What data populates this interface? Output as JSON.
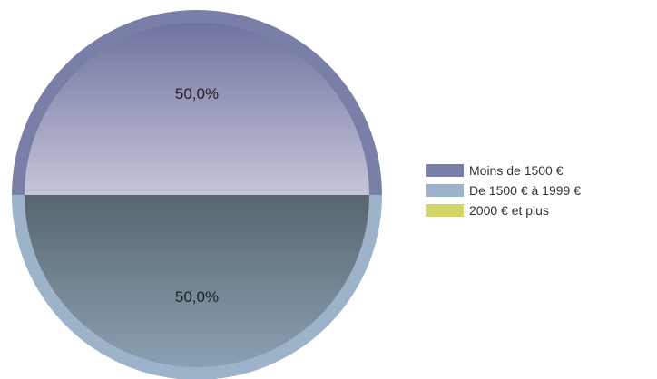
{
  "chart_data": {
    "type": "pie",
    "slices": [
      {
        "label": "Moins de 1500 €",
        "value": 50.0,
        "display": "50,0%",
        "color": "#7a7fa8"
      },
      {
        "label": "De 1500 € à 1999 €",
        "value": 50.0,
        "display": "50,0%",
        "color": "#9db3c9"
      },
      {
        "label": "2000 € et plus",
        "value": 0.0,
        "display": "",
        "color": "#d2d66a"
      }
    ],
    "legend_position": "right"
  }
}
